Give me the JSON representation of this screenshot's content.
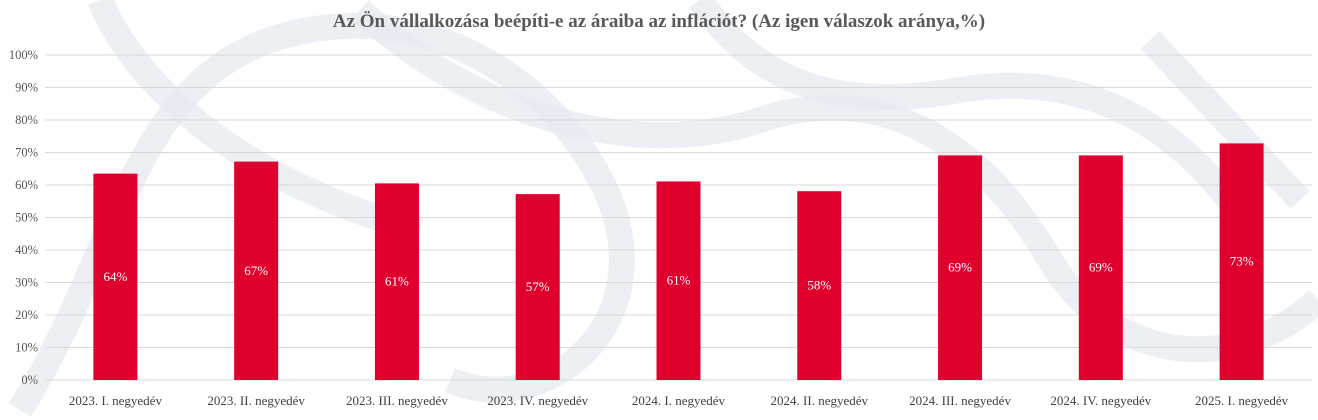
{
  "chart_data": {
    "type": "bar",
    "title": "Az Ön vállalkozása beépíti-e az áraiba az inflációt? (Az igen válaszok aránya,%)",
    "categories": [
      "2023. I. negyedév",
      "2023. II. negyedév",
      "2023. III. negyedév",
      "2023. IV. negyedév",
      "2024. I. negyedév",
      "2024. II. negyedév",
      "2024. III. negyedév",
      "2024. IV. negyedév",
      "2025. I. negyedév"
    ],
    "values": [
      63.5,
      67.2,
      60.5,
      57.2,
      61.1,
      58.1,
      69.1,
      69.1,
      72.8
    ],
    "data_labels": [
      "64%",
      "67%",
      "61%",
      "57%",
      "61%",
      "58%",
      "69%",
      "69%",
      "73%"
    ],
    "y_ticks": [
      "0%",
      "10%",
      "20%",
      "30%",
      "40%",
      "50%",
      "60%",
      "70%",
      "80%",
      "90%",
      "100%"
    ],
    "ylim": [
      0,
      100
    ],
    "grid": true,
    "legend": "none",
    "bar_color": "#e0002e"
  }
}
